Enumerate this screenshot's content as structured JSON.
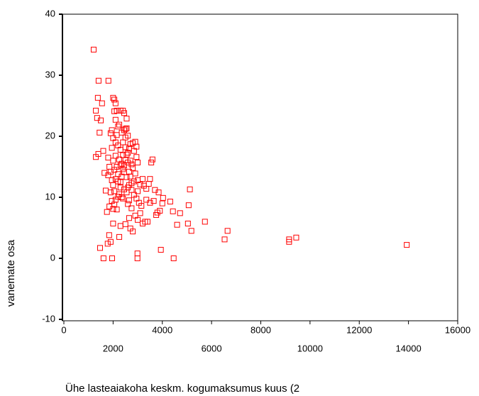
{
  "chart_data": {
    "type": "scatter",
    "x_label": "Ühe lasteaiakoha keskm. kogumaksumus kuus (2",
    "y_label": "vanemate osa",
    "color": "#ff0000",
    "xlim": [
      0,
      16000
    ],
    "xticks": [
      0,
      2000,
      4000,
      6000,
      8000,
      10000,
      12000,
      14000,
      16000
    ],
    "ylim": [
      -10,
      40
    ],
    "yticks": [
      -10,
      0,
      10,
      20,
      30,
      40
    ],
    "x": [
      1210,
      1410,
      1810,
      1380,
      13930,
      9150,
      9440,
      9150,
      6530,
      6650,
      5730,
      5120,
      5070,
      5180,
      5040,
      4720,
      4600,
      4460,
      3940,
      2990,
      2990,
      1610,
      1960,
      1470,
      1780,
      1900,
      1840,
      2250,
      4320,
      4430,
      4030,
      1300,
      1350,
      1300,
      1400,
      1450,
      1500,
      1550,
      1600,
      1650,
      1700,
      1750,
      1800,
      1850,
      1900,
      1950,
      1900,
      1950,
      2000,
      2000,
      2050,
      2100,
      2050,
      2100,
      2150,
      2200,
      2250,
      2300,
      2400,
      2450,
      2500,
      2550,
      2000,
      2050,
      2100,
      2000,
      2050,
      2100,
      2050,
      2000,
      2150,
      2200,
      2250,
      2300,
      2350,
      2400,
      2450,
      2500,
      2550,
      2600,
      2650,
      2700,
      2750,
      2800,
      2850,
      2900,
      2950,
      3000,
      2200,
      2300,
      2400,
      2500,
      2600,
      2700,
      2250,
      2350,
      2450,
      2550,
      2650,
      2750,
      2850,
      2950,
      3050,
      3150,
      3250,
      3350,
      3450,
      3500,
      3550,
      3600,
      3700,
      3750,
      3800,
      3900,
      3850,
      3500,
      3400,
      3300,
      3200,
      3100,
      3000,
      2900,
      2800,
      2700,
      2600,
      2500,
      2400,
      2300,
      2200,
      2150,
      2100,
      2100,
      2150,
      2350,
      2450,
      2550,
      2650,
      2750,
      3100,
      3200,
      3000,
      2900,
      2800,
      2700,
      2600,
      2500,
      2400,
      2300,
      2200,
      2350,
      2450,
      2550,
      1800,
      1900,
      1950,
      1850,
      1950,
      2000,
      2300,
      2650,
      3350,
      3650,
      4000,
      3000,
      2950,
      2850,
      2750,
      2650,
      2600
    ],
    "values": [
      34.2,
      29.1,
      29.1,
      26.3,
      2.2,
      2.7,
      3.4,
      3.1,
      3.1,
      4.5,
      6.0,
      11.3,
      8.7,
      4.5,
      5.7,
      7.4,
      5.5,
      0,
      1.4,
      0.8,
      0,
      0,
      0,
      1.7,
      2.4,
      2.7,
      3.8,
      3.5,
      9.3,
      7.7,
      9.9,
      24.2,
      23.0,
      16.6,
      17.1,
      20.6,
      22.6,
      25.4,
      17.6,
      14.0,
      11.1,
      7.6,
      13.6,
      15.0,
      10.8,
      18.1,
      20.5,
      21.0,
      19.7,
      26.3,
      26.0,
      25.4,
      24.1,
      22.7,
      24.2,
      21.6,
      21.9,
      24.2,
      24.2,
      23.8,
      21.2,
      22.9,
      16.0,
      14.5,
      13.0,
      12.0,
      11.0,
      9.6,
      8.8,
      8.1,
      8.0,
      10.1,
      10.5,
      12.5,
      13.4,
      14.6,
      15.2,
      16.1,
      17.0,
      15.7,
      14.2,
      13.4,
      12.3,
      18.9,
      17.6,
      19.1,
      18.3,
      15.7,
      18.5,
      17.8,
      19.0,
      19.8,
      20.1,
      18.7,
      16.2,
      15.5,
      14.1,
      13.3,
      12.0,
      11.2,
      10.4,
      9.8,
      9.1,
      8.6,
      11.9,
      11.4,
      12.2,
      13.0,
      15.7,
      16.2,
      11.2,
      7.1,
      7.5,
      7.8,
      10.8,
      9.1,
      6.0,
      6.0,
      5.7,
      7.4,
      6.3,
      7.0,
      4.4,
      4.9,
      8.9,
      5.6,
      9.8,
      11.6,
      13.8,
      15.0,
      16.8,
      19.0,
      20.2,
      20.6,
      21.0,
      21.3,
      9.5,
      8.2,
      12.1,
      13.0,
      12.8,
      13.9,
      14.8,
      16.0,
      17.3,
      18.2,
      16.9,
      15.2,
      12.6,
      10.0,
      11.3,
      10.8,
      16.5,
      14.2,
      12.8,
      8.5,
      9.4,
      5.7,
      5.3,
      6.6,
      9.6,
      9.4,
      9.0,
      11.0,
      16.6,
      12.6,
      15.4,
      18.0,
      11.6
    ]
  }
}
